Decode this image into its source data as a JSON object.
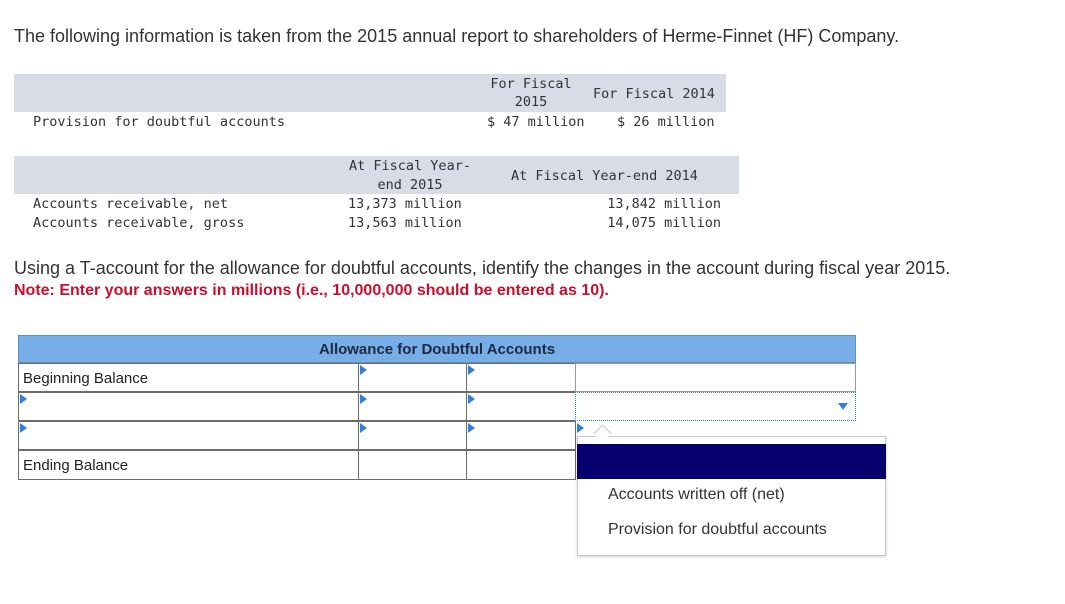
{
  "intro": "The following information is taken from the 2015 annual report to shareholders of Herme-Finnet (HF) Company.",
  "table1": {
    "col1_line1": "For Fiscal",
    "col1_line2": "2015",
    "col2": "For Fiscal 2014",
    "row_label": "Provision for doubtful accounts",
    "v2015": "$ 47 million",
    "v2014": "$ 26 million"
  },
  "table2": {
    "col1_line1": "At Fiscal Year-",
    "col1_line2": "end 2015",
    "col2": "At Fiscal Year-end 2014",
    "rows": [
      {
        "label": "Accounts receivable, net",
        "v2015": "13,373 million",
        "v2014": "13,842 million"
      },
      {
        "label": "Accounts receivable, gross",
        "v2015": "13,563 million",
        "v2014": "14,075 million"
      }
    ]
  },
  "question": "Using a T-account for the allowance for doubtful accounts, identify the changes in the account during fiscal year 2015.",
  "note": "Note: Enter your answers in millions (i.e., 10,000,000 should be entered as 10).",
  "taccount": {
    "title": "Allowance for Doubtful Accounts",
    "beginning_label": "Beginning Balance",
    "ending_label": "Ending Balance"
  },
  "dropdown": {
    "selected": "",
    "options": [
      "",
      "Accounts written off (net)",
      "Provision for doubtful accounts"
    ]
  },
  "colors": {
    "header_blue": "#78aee8",
    "accent_blue": "#2f7fd9",
    "note_red": "#c8102e",
    "selected_option": "#05006d",
    "band_gray": "#d9dce6"
  }
}
